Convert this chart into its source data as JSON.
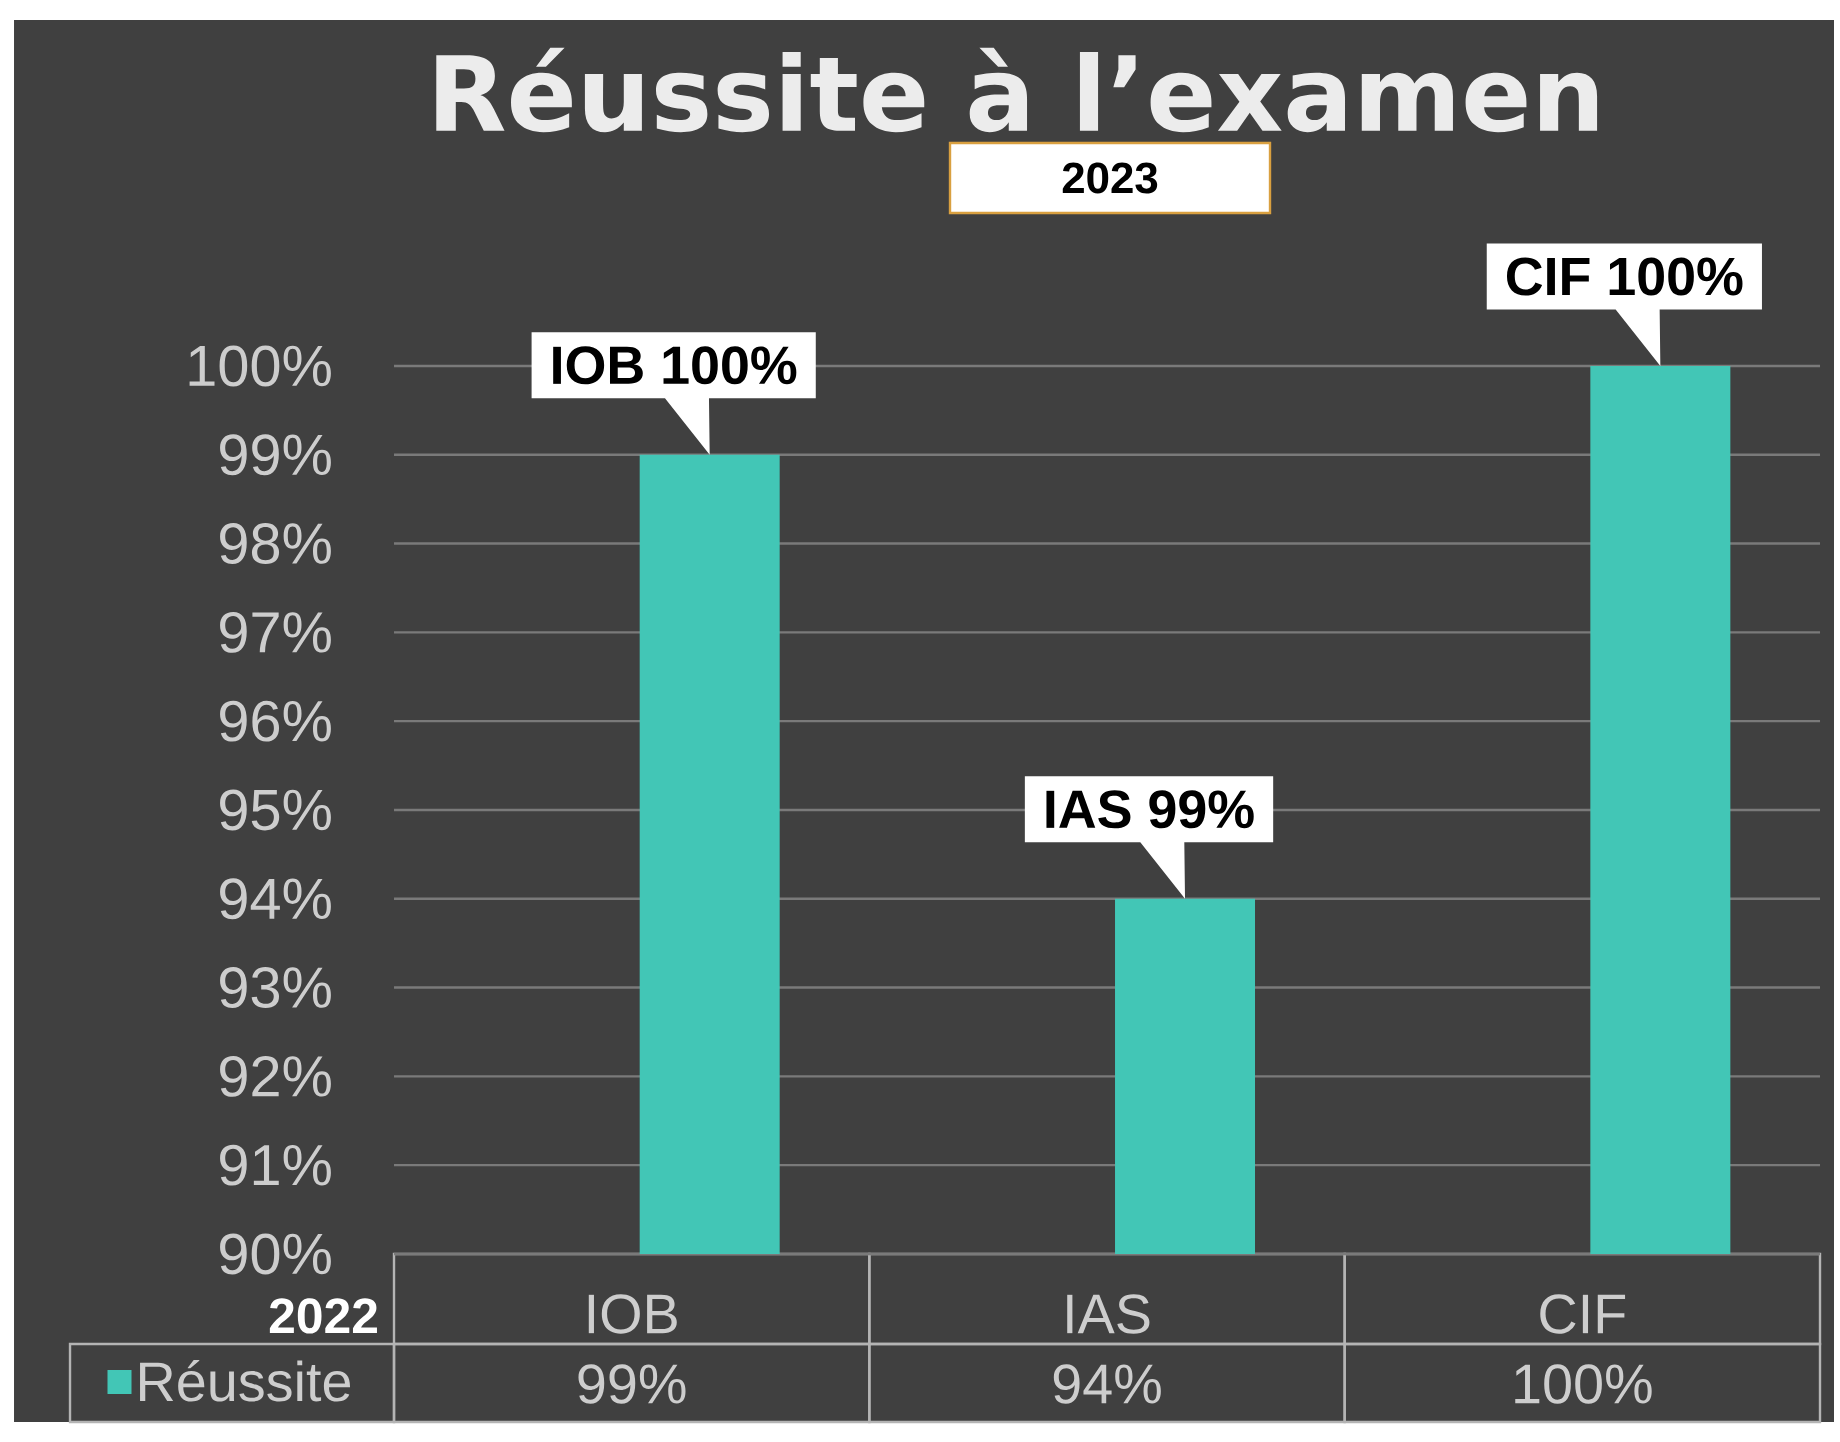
{
  "chart_data": {
    "type": "bar",
    "title": "Réussite à l’examen",
    "subtitle": "2023",
    "categories": [
      "IOB",
      "IAS",
      "CIF"
    ],
    "series": [
      {
        "name": "Réussite",
        "color": "#42c6b6",
        "values": [
          99,
          94,
          100
        ],
        "value_labels": [
          "99%",
          "94%",
          "100%"
        ]
      }
    ],
    "ylim": [
      90,
      100
    ],
    "yticks": [
      {
        "value": 90,
        "label": "90%"
      },
      {
        "value": 91,
        "label": "91%"
      },
      {
        "value": 92,
        "label": "92%"
      },
      {
        "value": 93,
        "label": "93%"
      },
      {
        "value": 94,
        "label": "94%"
      },
      {
        "value": 95,
        "label": "95%"
      },
      {
        "value": 96,
        "label": "96%"
      },
      {
        "value": 97,
        "label": "97%"
      },
      {
        "value": 98,
        "label": "98%"
      },
      {
        "value": 99,
        "label": "99%"
      },
      {
        "value": 100,
        "label": "100%"
      }
    ],
    "grid": "y",
    "legend": "bottom left",
    "annotations": [
      "2022",
      {
        "text": "IOB 100%",
        "x": "IOB",
        "y": 99
      },
      {
        "text": "IAS 99%",
        "x": "IAS",
        "y": 94
      },
      {
        "text": "CIF 100%",
        "x": "CIF",
        "y": 100
      }
    ]
  }
}
